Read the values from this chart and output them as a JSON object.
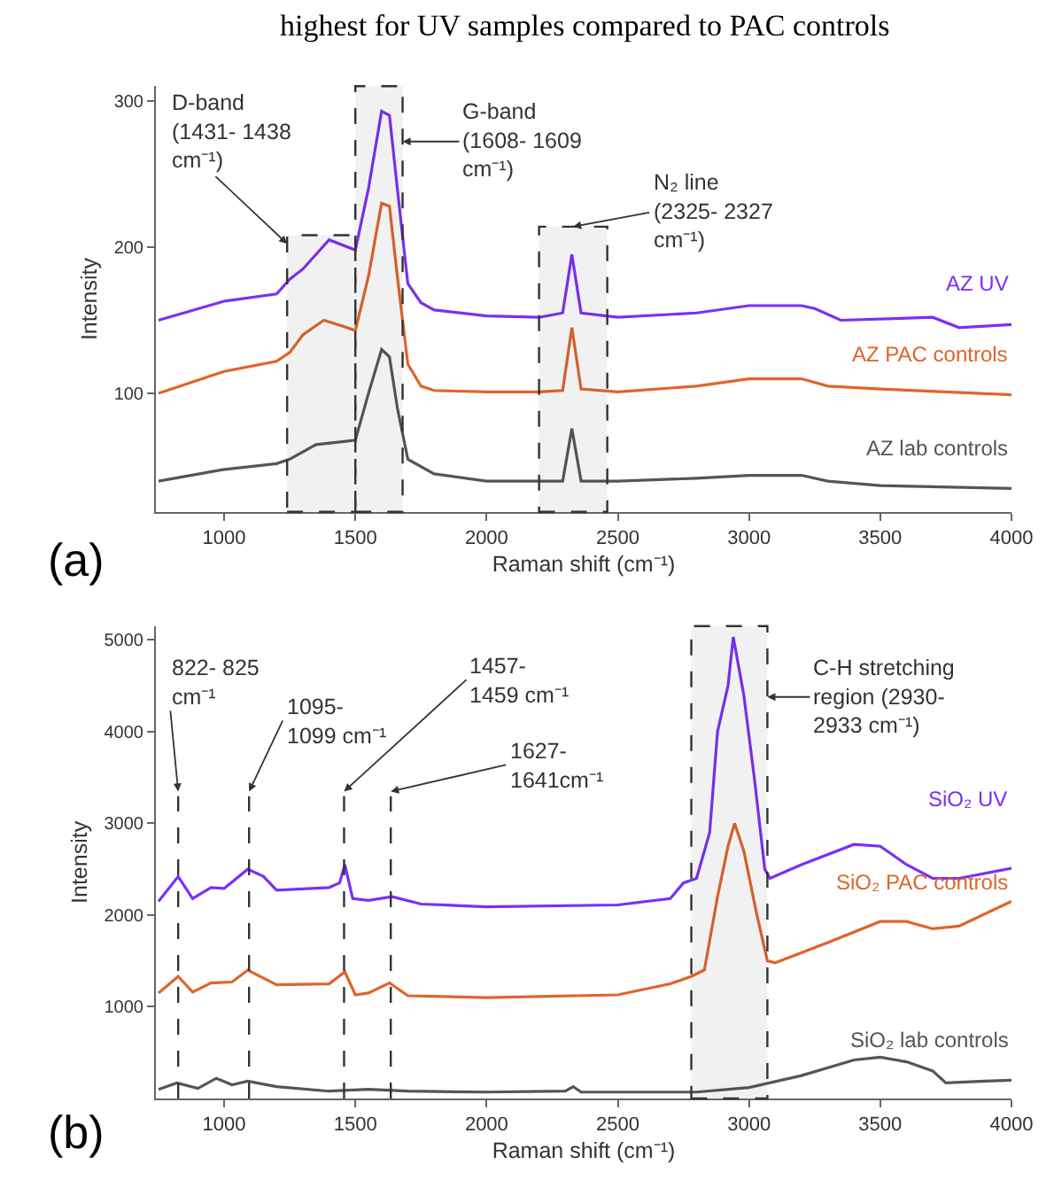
{
  "chart_data": [
    {
      "type": "line",
      "xlabel": "Raman shift (cm⁻¹)",
      "ylabel": "Intensity",
      "annotations": [
        "highest for UV samples compared to PAC controls",
        "(a)"
      ],
      "xlim": [
        740,
        4000
      ],
      "xticks": [
        1000,
        1500,
        2000,
        2500,
        3000,
        3500,
        4000
      ],
      "ylim": [
        19,
        310
      ],
      "yticks": [
        100,
        200,
        300
      ],
      "legend": false,
      "line_style": "solid",
      "bands": [
        {
          "axis": "x",
          "from": 1240,
          "to": 1500,
          "label": "D-band\n(1431- 1438\ncm⁻¹)",
          "color": "#333333"
        },
        {
          "axis": "x",
          "from": 1500,
          "to": 1680,
          "label": "G-band\n(1608- 1609\ncm⁻¹)",
          "color": "#333333"
        },
        {
          "axis": "x",
          "from": 2200,
          "to": 2460,
          "label": "N₂ line\n(2325- 2327\ncm⁻¹)",
          "color": "#333333"
        }
      ],
      "series": [
        {
          "name": "AZ UV",
          "color": "#7b2ff7",
          "x": [
            750,
            1000,
            1200,
            1250,
            1300,
            1400,
            1500,
            1550,
            1600,
            1630,
            1660,
            1700,
            1750,
            1800,
            2000,
            2200,
            2290,
            2325,
            2360,
            2500,
            2800,
            3000,
            3200,
            3250,
            3350,
            3700,
            3800,
            4000
          ],
          "values": [
            150,
            163,
            168,
            178,
            185,
            205,
            198,
            240,
            293,
            290,
            240,
            175,
            162,
            157,
            153,
            152,
            155,
            195,
            155,
            152,
            155,
            160,
            160,
            158,
            150,
            152,
            145,
            147
          ]
        },
        {
          "name": "AZ PAC controls",
          "color": "#e0642a",
          "x": [
            750,
            1000,
            1200,
            1250,
            1300,
            1380,
            1450,
            1500,
            1550,
            1600,
            1630,
            1660,
            1700,
            1750,
            1800,
            2000,
            2200,
            2290,
            2325,
            2360,
            2500,
            2800,
            3000,
            3200,
            3300,
            3500,
            4000
          ],
          "values": [
            100,
            115,
            122,
            128,
            140,
            150,
            146,
            143,
            180,
            230,
            228,
            180,
            120,
            105,
            102,
            101,
            101,
            102,
            145,
            103,
            101,
            105,
            110,
            110,
            105,
            103,
            99
          ]
        },
        {
          "name": "AZ lab controls",
          "color": "#555555",
          "x": [
            750,
            1000,
            1200,
            1250,
            1350,
            1450,
            1500,
            1550,
            1600,
            1630,
            1660,
            1700,
            1800,
            2000,
            2290,
            2325,
            2360,
            2500,
            2800,
            3000,
            3200,
            3300,
            3500,
            4000
          ],
          "values": [
            40,
            48,
            52,
            55,
            65,
            67,
            68,
            100,
            130,
            125,
            90,
            55,
            45,
            40,
            40,
            76,
            40,
            40,
            42,
            44,
            44,
            40,
            37,
            35
          ]
        }
      ]
    },
    {
      "type": "line",
      "xlabel": "Raman shift (cm⁻¹)",
      "ylabel": "Intensity",
      "annotations": [
        "(b)"
      ],
      "xlim": [
        740,
        4000
      ],
      "xticks": [
        1000,
        1500,
        2000,
        2500,
        3000,
        3500,
        4000
      ],
      "ylim": [
        0,
        5150
      ],
      "yticks": [
        1000,
        2000,
        3000,
        4000,
        5000
      ],
      "legend": false,
      "line_style": "solid",
      "ref_lines": [
        {
          "axis": "x",
          "value": 825,
          "label": "822- 825\ncm⁻¹",
          "color": "#333333",
          "line_style": "dashed"
        },
        {
          "axis": "x",
          "value": 1095,
          "label": "1095-\n1099 cm⁻¹",
          "color": "#333333",
          "line_style": "dashed"
        },
        {
          "axis": "x",
          "value": 1457,
          "label": "1457-\n1459 cm⁻¹",
          "color": "#333333",
          "line_style": "dashed"
        },
        {
          "axis": "x",
          "value": 1635,
          "label": "1627-\n1641cm⁻¹",
          "color": "#333333",
          "line_style": "dashed"
        }
      ],
      "bands": [
        {
          "axis": "x",
          "from": 2780,
          "to": 3070,
          "label": "C-H stretching\nregion (2930-\n2933 cm⁻¹)",
          "color": "#333333"
        }
      ],
      "series": [
        {
          "name": "SiO₂ UV",
          "color": "#7b2ff7",
          "x": [
            750,
            825,
            880,
            950,
            1000,
            1090,
            1150,
            1200,
            1400,
            1440,
            1460,
            1490,
            1550,
            1640,
            1750,
            2000,
            2500,
            2700,
            2750,
            2800,
            2850,
            2880,
            2920,
            2940,
            2980,
            3020,
            3060,
            3080,
            3200,
            3400,
            3500,
            3600,
            3700,
            3800,
            4000
          ],
          "values": [
            2150,
            2420,
            2180,
            2300,
            2290,
            2500,
            2420,
            2270,
            2300,
            2350,
            2550,
            2180,
            2160,
            2200,
            2120,
            2090,
            2110,
            2180,
            2350,
            2400,
            2900,
            4000,
            4500,
            5030,
            4400,
            3500,
            2500,
            2400,
            2550,
            2770,
            2750,
            2550,
            2400,
            2400,
            2510
          ]
        },
        {
          "name": "SiO₂ PAC controls",
          "color": "#e0642a",
          "x": [
            750,
            825,
            880,
            950,
            1030,
            1090,
            1200,
            1400,
            1460,
            1500,
            1550,
            1630,
            1700,
            2000,
            2500,
            2700,
            2780,
            2830,
            2880,
            2920,
            2945,
            2980,
            3030,
            3070,
            3100,
            3300,
            3500,
            3600,
            3700,
            3800,
            4000
          ],
          "values": [
            1150,
            1330,
            1160,
            1260,
            1270,
            1400,
            1240,
            1250,
            1380,
            1130,
            1150,
            1260,
            1120,
            1100,
            1130,
            1250,
            1330,
            1400,
            2200,
            2750,
            3000,
            2700,
            2000,
            1500,
            1480,
            1700,
            1930,
            1930,
            1850,
            1880,
            2150
          ]
        },
        {
          "name": "SiO₂ lab controls",
          "color": "#555555",
          "x": [
            750,
            820,
            900,
            970,
            1030,
            1090,
            1200,
            1400,
            1550,
            1700,
            2000,
            2300,
            2330,
            2360,
            2800,
            3000,
            3200,
            3400,
            3500,
            3600,
            3700,
            3750,
            3900,
            4000
          ],
          "values": [
            100,
            170,
            110,
            220,
            150,
            190,
            130,
            80,
            100,
            80,
            70,
            80,
            130,
            70,
            70,
            120,
            250,
            420,
            450,
            400,
            300,
            170,
            190,
            200
          ]
        }
      ]
    }
  ]
}
